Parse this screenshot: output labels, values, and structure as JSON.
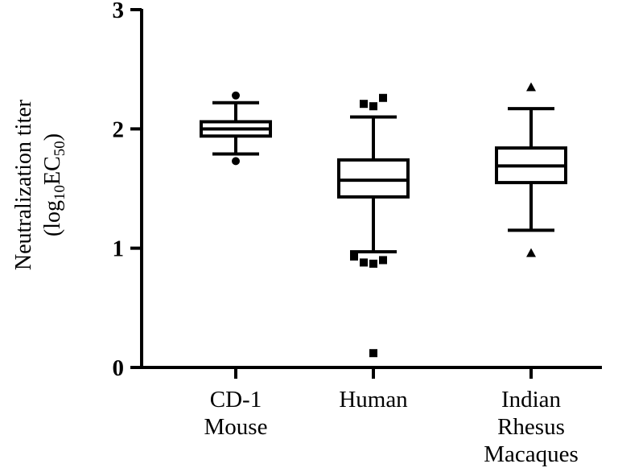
{
  "chart_data": {
    "type": "boxplot",
    "ylabel_line1": "Neutralization titer",
    "ylabel_line2": {
      "pre": "(log",
      "sub1": "10",
      "mid": "EC",
      "sub2": "50",
      "post": ")"
    },
    "ylim": [
      0,
      3
    ],
    "yticks": [
      {
        "value": 0,
        "label": "0"
      },
      {
        "value": 1,
        "label": "1"
      },
      {
        "value": 2,
        "label": "2"
      },
      {
        "value": 3,
        "label": "3"
      }
    ],
    "grid": false,
    "legend": "none",
    "categories": [
      {
        "label_lines": [
          "CD-1",
          "Mouse"
        ]
      },
      {
        "label_lines": [
          "Human"
        ]
      },
      {
        "label_lines": [
          "Indian",
          "Rhesus",
          "Macaques"
        ]
      }
    ],
    "boxes": [
      {
        "whisker_low": 1.79,
        "q1": 1.94,
        "median": 2.0,
        "q3": 2.06,
        "whisker_high": 2.22,
        "marker": "circle",
        "outliers": [
          1.73,
          2.28
        ]
      },
      {
        "whisker_low": 0.97,
        "q1": 1.43,
        "median": 1.57,
        "q3": 1.74,
        "whisker_high": 2.1,
        "marker": "square",
        "outliers": [
          0.87,
          0.88,
          0.9,
          0.93,
          2.19,
          2.21,
          2.26,
          0.12
        ]
      },
      {
        "whisker_low": 1.15,
        "q1": 1.55,
        "median": 1.69,
        "q3": 1.84,
        "whisker_high": 2.17,
        "marker": "triangle",
        "outliers": [
          0.96,
          2.35
        ]
      }
    ]
  }
}
